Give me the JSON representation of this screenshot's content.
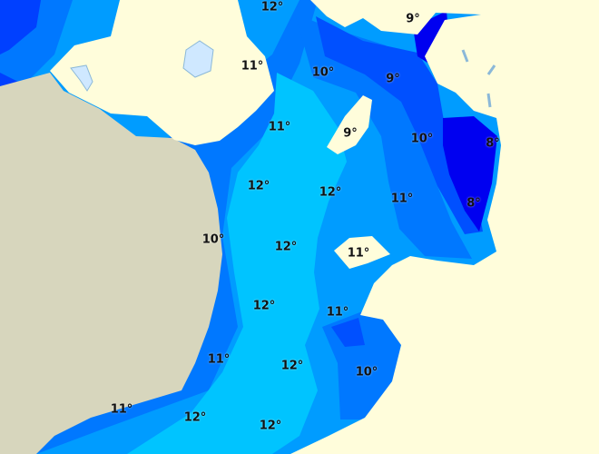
{
  "map": {
    "colors": {
      "land_main": "#fffddb",
      "land_other": "#d7d6bd",
      "lake": "#cfe8ff",
      "temp_8": "#0000f0",
      "temp_9": "#0050ff",
      "temp_10": "#0078ff",
      "temp_11": "#009cff",
      "temp_12": "#00c4ff"
    },
    "labels": [
      "12°",
      "9°",
      "11°",
      "10°",
      "9°",
      "11°",
      "9°",
      "10°",
      "8°",
      "12°",
      "12°",
      "11°",
      "8°",
      "10°",
      "12°",
      "11°",
      "12°",
      "11°",
      "11°",
      "12°",
      "10°",
      "11°",
      "12°",
      "12°"
    ]
  }
}
